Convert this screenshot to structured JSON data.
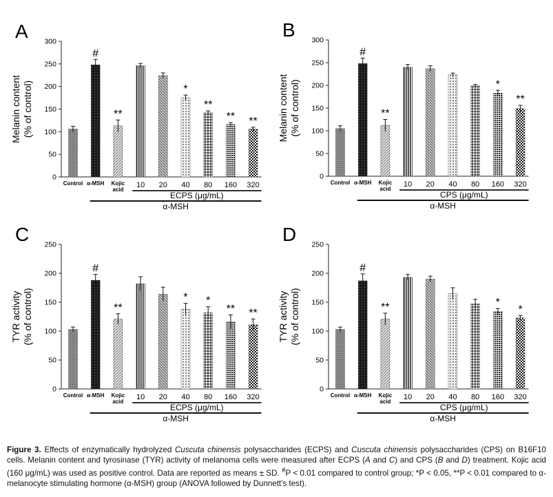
{
  "chart_data": [
    {
      "type": "bar",
      "panel": "A",
      "ylabel_lines": [
        "Melanin content",
        "(% of control)"
      ],
      "ylim": [
        0,
        300
      ],
      "yticks": [
        0,
        50,
        100,
        150,
        200,
        250,
        300
      ],
      "categories": [
        "Control",
        "α-MSH",
        "Kojic acid",
        "10",
        "20",
        "40",
        "80",
        "160",
        "320"
      ],
      "values": [
        106,
        248,
        113,
        246,
        224,
        175,
        142,
        116,
        106
      ],
      "errors": [
        6,
        12,
        13,
        5,
        6,
        6,
        4,
        4,
        4
      ],
      "significance": [
        "",
        "#",
        "**",
        "",
        "",
        "*",
        "**",
        "**",
        "**"
      ],
      "group_label": "ECPS (μg/mL)",
      "msh_label": "α-MSH"
    },
    {
      "type": "bar",
      "panel": "B",
      "ylabel_lines": [
        "Melanin content",
        "(% of control)"
      ],
      "ylim": [
        0,
        300
      ],
      "yticks": [
        0,
        50,
        100,
        150,
        200,
        250,
        300
      ],
      "categories": [
        "Control",
        "α-MSH",
        "Kojic acid",
        "10",
        "20",
        "40",
        "80",
        "160",
        "320"
      ],
      "values": [
        105,
        248,
        112,
        240,
        237,
        223,
        199,
        183,
        149
      ],
      "errors": [
        6,
        12,
        13,
        6,
        6,
        4,
        3,
        6,
        7
      ],
      "significance": [
        "",
        "#",
        "**",
        "",
        "",
        "",
        "",
        "*",
        "**"
      ],
      "group_label": "CPS (μg/mL)",
      "msh_label": "α-MSH"
    },
    {
      "type": "bar",
      "panel": "C",
      "ylabel_lines": [
        "TYR activity",
        "(% of control)"
      ],
      "ylim": [
        0,
        250
      ],
      "yticks": [
        0,
        50,
        100,
        150,
        200,
        250
      ],
      "categories": [
        "Control",
        "α-MSH",
        "Kojic acid",
        "10",
        "20",
        "40",
        "80",
        "160",
        "320"
      ],
      "values": [
        103,
        188,
        121,
        182,
        164,
        138,
        132,
        116,
        111
      ],
      "errors": [
        4,
        10,
        9,
        12,
        12,
        10,
        10,
        12,
        10
      ],
      "significance": [
        "",
        "#",
        "**",
        "",
        "",
        "*",
        "*",
        "**",
        "**"
      ],
      "group_label": "ECPS (μg/mL)",
      "msh_label": "α-MSH"
    },
    {
      "type": "bar",
      "panel": "D",
      "ylabel_lines": [
        "TYR activity",
        "(% of control)"
      ],
      "ylim": [
        0,
        250
      ],
      "yticks": [
        0,
        50,
        100,
        150,
        200,
        250
      ],
      "categories": [
        "Control",
        "α-MSH",
        "Kojic acid",
        "10",
        "20",
        "40",
        "80",
        "160",
        "320"
      ],
      "values": [
        103,
        187,
        121,
        193,
        190,
        165,
        147,
        134,
        123
      ],
      "errors": [
        4,
        12,
        10,
        5,
        5,
        10,
        8,
        5,
        4
      ],
      "significance": [
        "",
        "#",
        "**",
        "",
        "",
        "",
        "",
        "*",
        "*"
      ],
      "group_label": "CPS (μg/mL)",
      "msh_label": "α-MSH"
    }
  ],
  "caption": {
    "lead": "Figure 3.",
    "p1": " Effects of enzymatically hydrolyzed ",
    "cc1": "Cuscuta chinensis",
    "p2": " polysaccharides (ECPS) and ",
    "cc2": "Cuscuta chinensis",
    "p3": " polysaccharides (CPS) on B16F10 cells. Melanin content and tyrosinase (TYR) activity of melanoma cells were measured after ECPS (",
    "a": "A",
    "p4": " and ",
    "c": "C",
    "p5": ") and CPS (",
    "b": "B",
    "p6": " and ",
    "d": "D",
    "p7": ") treatment. Kojic acid (160 μg/mL) was used as positive control. Data are reported as means ± SD. ",
    "hash": "#",
    "p8": "P < 0.01 compared to control group; *P < 0.05, **P < 0.01 compared to α-melanocyte stimulating hormone (α-MSH) group (ANOVA followed by Dunnett's test)."
  }
}
